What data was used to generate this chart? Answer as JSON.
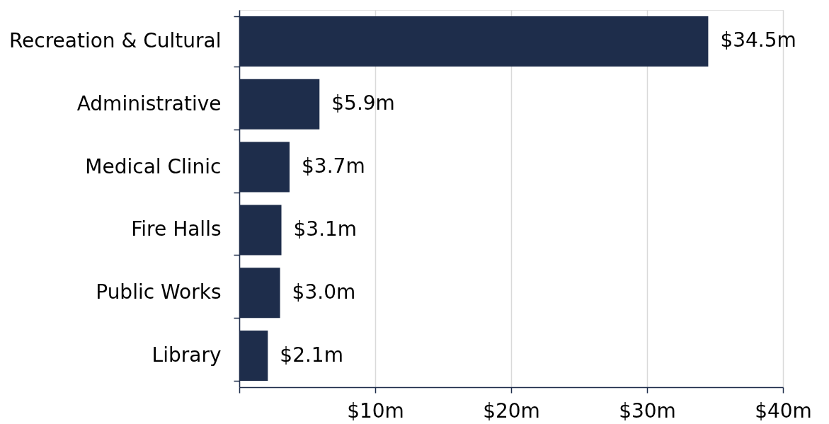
{
  "chart_data": {
    "type": "bar",
    "orientation": "horizontal",
    "categories": [
      "Recreation & Cultural",
      "Administrative",
      "Medical Clinic",
      "Fire Halls",
      "Public Works",
      "Library"
    ],
    "values": [
      34.5,
      5.9,
      3.7,
      3.1,
      3.0,
      2.1
    ],
    "value_labels": [
      "$34.5m",
      "$5.9m",
      "$3.7m",
      "$3.1m",
      "$3.0m",
      "$2.1m"
    ],
    "color": "#1e2d4b",
    "xlim": [
      0,
      40
    ],
    "xticks": [
      {
        "value": 0,
        "label": null
      },
      {
        "value": 10,
        "label": "$10m"
      },
      {
        "value": 20,
        "label": "$20m"
      },
      {
        "value": 30,
        "label": "$30m"
      },
      {
        "value": 40,
        "label": "$40m"
      }
    ],
    "grid": "x"
  }
}
